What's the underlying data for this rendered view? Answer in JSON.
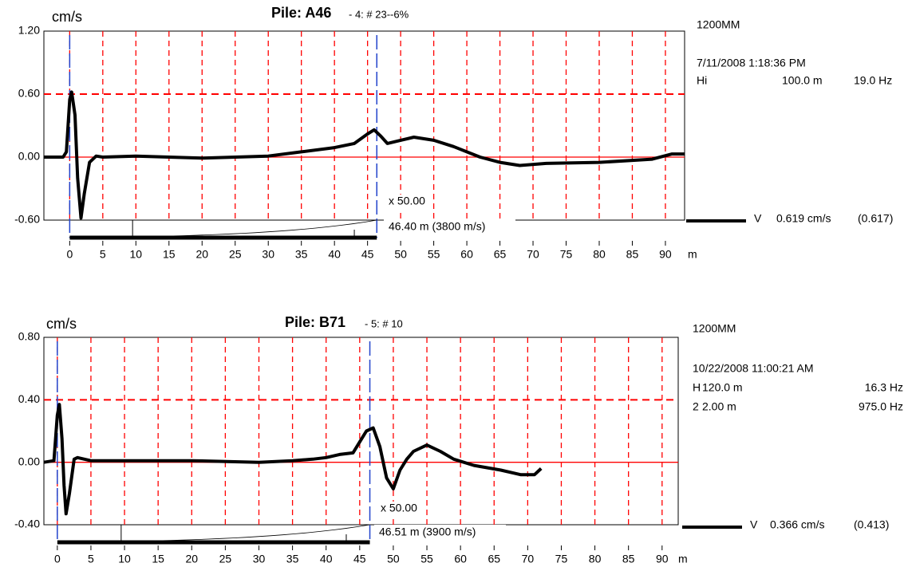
{
  "chart_data": [
    {
      "type": "line",
      "title": "Pile: A46",
      "subtitle": "- 4: # 23--6%",
      "y_unit": "cm/s",
      "x_unit": "m",
      "xlim": [
        -3.9,
        92.9
      ],
      "ylim": [
        -0.6,
        1.2
      ],
      "xticks": [
        0,
        5,
        10,
        15,
        20,
        25,
        30,
        35,
        40,
        45,
        50,
        55,
        60,
        65,
        70,
        75,
        80,
        85,
        90
      ],
      "yticks": [
        {
          "value": 1.2,
          "label": "1.20"
        },
        {
          "value": 0.6,
          "label": "0.60"
        },
        {
          "value": 0,
          "label": "0.00"
        },
        {
          "value": -0.6,
          "label": "-0.60"
        }
      ],
      "grid": true,
      "grid_color": "#ff0000",
      "cursor_color": "#2244cc",
      "cursors": [
        0,
        46.4
      ],
      "x": [
        -3.9,
        -1,
        -0.5,
        0,
        0.3,
        0.8,
        1.2,
        1.7,
        2.2,
        3,
        4,
        5,
        10,
        20,
        30,
        35,
        40,
        43,
        45,
        46,
        47,
        48,
        50,
        52,
        55,
        58,
        62,
        65,
        68,
        72,
        80,
        88,
        91,
        92.9
      ],
      "series": [
        {
          "name": "V",
          "color": "#000000",
          "values": [
            0,
            0,
            0.05,
            0.55,
            0.62,
            0.4,
            -0.2,
            -0.58,
            -0.35,
            -0.05,
            0.01,
            0,
            0.01,
            -0.01,
            0.01,
            0.05,
            0.09,
            0.13,
            0.22,
            0.26,
            0.2,
            0.13,
            0.16,
            0.19,
            0.16,
            0.1,
            0,
            -0.05,
            -0.08,
            -0.06,
            -0.05,
            -0.02,
            0.03,
            0.03
          ]
        }
      ],
      "legend_value": "0.619 cm/s",
      "legend_reference": "(0.617)",
      "amplification": "x 50.00",
      "depth_label": "46.40 m (3800 m/s)",
      "info": [
        "1200MM",
        "7/11/2008 1:18:36 PM",
        "Hi",
        "100.0 m",
        "19.0 Hz"
      ]
    },
    {
      "type": "line",
      "title": "Pile: B71",
      "subtitle": "- 5: # 10",
      "y_unit": "cm/s",
      "x_unit": "m",
      "xlim": [
        -2,
        92.4
      ],
      "ylim": [
        -0.4,
        0.8
      ],
      "xticks": [
        0,
        5,
        10,
        15,
        20,
        25,
        30,
        35,
        40,
        45,
        50,
        55,
        60,
        65,
        70,
        75,
        80,
        85,
        90
      ],
      "yticks": [
        {
          "value": 0.8,
          "label": "0.80"
        },
        {
          "value": 0.4,
          "label": "0.40"
        },
        {
          "value": 0,
          "label": "0.00"
        },
        {
          "value": -0.4,
          "label": "-0.40"
        }
      ],
      "grid": true,
      "grid_color": "#ff0000",
      "cursor_color": "#2244cc",
      "cursors": [
        0,
        46.51
      ],
      "x": [
        -2,
        -0.5,
        0,
        0.3,
        0.7,
        1,
        1.3,
        1.8,
        2.5,
        3,
        5,
        10,
        20,
        30,
        35,
        38,
        40,
        42,
        44,
        45,
        46,
        47,
        48,
        49,
        50,
        51,
        52,
        53,
        55,
        57,
        59,
        62,
        66,
        69,
        71,
        72
      ],
      "series": [
        {
          "name": "V",
          "color": "#000000",
          "values": [
            0,
            0.01,
            0.3,
            0.37,
            0.15,
            -0.15,
            -0.33,
            -0.2,
            0.02,
            0.03,
            0.01,
            0.01,
            0.01,
            0,
            0.01,
            0.02,
            0.03,
            0.05,
            0.06,
            0.13,
            0.2,
            0.22,
            0.1,
            -0.1,
            -0.17,
            -0.05,
            0.02,
            0.07,
            0.11,
            0.07,
            0.02,
            -0.02,
            -0.05,
            -0.08,
            -0.08,
            -0.04
          ]
        }
      ],
      "legend_value": "0.366 cm/s",
      "legend_reference": "(0.413)",
      "amplification": "x 50.00",
      "depth_label": "46.51 m (3900 m/s)",
      "info": [
        "1200MM",
        "10/22/2008 11:00:21 AM",
        "H",
        "120.0 m",
        "16.3 Hz",
        "2",
        "2.00 m",
        "975.0 Hz"
      ]
    }
  ]
}
